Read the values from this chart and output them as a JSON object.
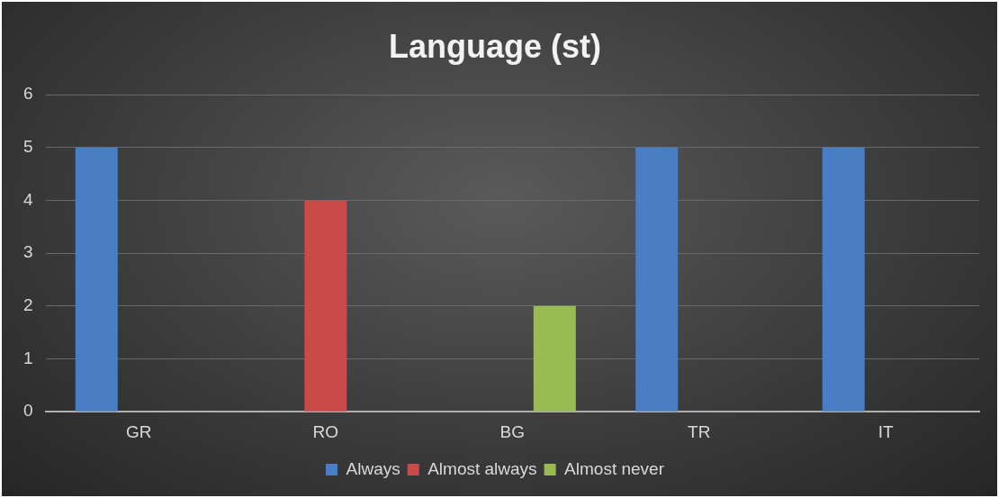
{
  "chart_data": {
    "type": "bar",
    "title": "Language (st)",
    "categories": [
      "GR",
      "RO",
      "BG",
      "TR",
      "IT"
    ],
    "series": [
      {
        "name": "Always",
        "color": "#4a7ec4",
        "values": [
          5,
          0,
          0,
          5,
          5
        ]
      },
      {
        "name": "Almost always",
        "color": "#c94a48",
        "values": [
          0,
          4,
          0,
          0,
          0
        ]
      },
      {
        "name": "Almost never",
        "color": "#98bb52",
        "values": [
          0,
          0,
          2,
          0,
          0
        ]
      }
    ],
    "ylim": [
      0,
      6
    ],
    "yticks": [
      0,
      1,
      2,
      3,
      4,
      5,
      6
    ],
    "grid": "y",
    "legend": "bottom"
  }
}
